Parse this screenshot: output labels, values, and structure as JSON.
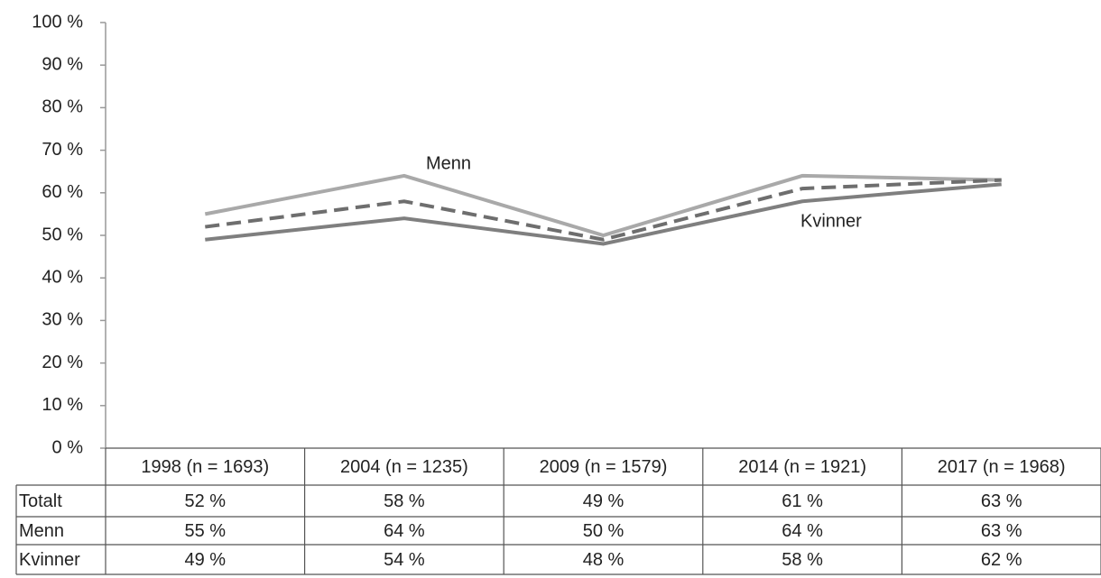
{
  "chart_data": {
    "type": "line",
    "categories": [
      "1998 (n = 1693)",
      "2004 (n = 1235)",
      "2009 (n = 1579)",
      "2014 (n = 1921)",
      "2017 (n = 1968)"
    ],
    "series": [
      {
        "name": "Totalt",
        "color": "#6e6e6e",
        "dashed": true,
        "values": [
          52,
          58,
          49,
          61,
          63
        ],
        "value_labels": [
          "52 %",
          "58 %",
          "49 %",
          "61 %",
          "63 %"
        ]
      },
      {
        "name": "Menn",
        "color": "#a9a9a9",
        "dashed": false,
        "values": [
          55,
          64,
          50,
          64,
          63
        ],
        "value_labels": [
          "55 %",
          "64 %",
          "50 %",
          "64 %",
          "63 %"
        ]
      },
      {
        "name": "Kvinner",
        "color": "#7f7f7f",
        "dashed": false,
        "values": [
          49,
          54,
          48,
          58,
          62
        ],
        "value_labels": [
          "49 %",
          "54 %",
          "48 %",
          "58 %",
          "62 %"
        ]
      }
    ],
    "ylim": [
      0,
      100
    ],
    "yticks": [
      {
        "value": 0,
        "label": "0 %"
      },
      {
        "value": 10,
        "label": "10 %"
      },
      {
        "value": 20,
        "label": "20 %"
      },
      {
        "value": 30,
        "label": "30 %"
      },
      {
        "value": 40,
        "label": "40 %"
      },
      {
        "value": 50,
        "label": "50 %"
      },
      {
        "value": 60,
        "label": "60 %"
      },
      {
        "value": 70,
        "label": "70 %"
      },
      {
        "value": 80,
        "label": "80 %"
      },
      {
        "value": 90,
        "label": "90 %"
      },
      {
        "value": 100,
        "label": "100 %"
      }
    ],
    "grid": false,
    "data_table": true
  }
}
